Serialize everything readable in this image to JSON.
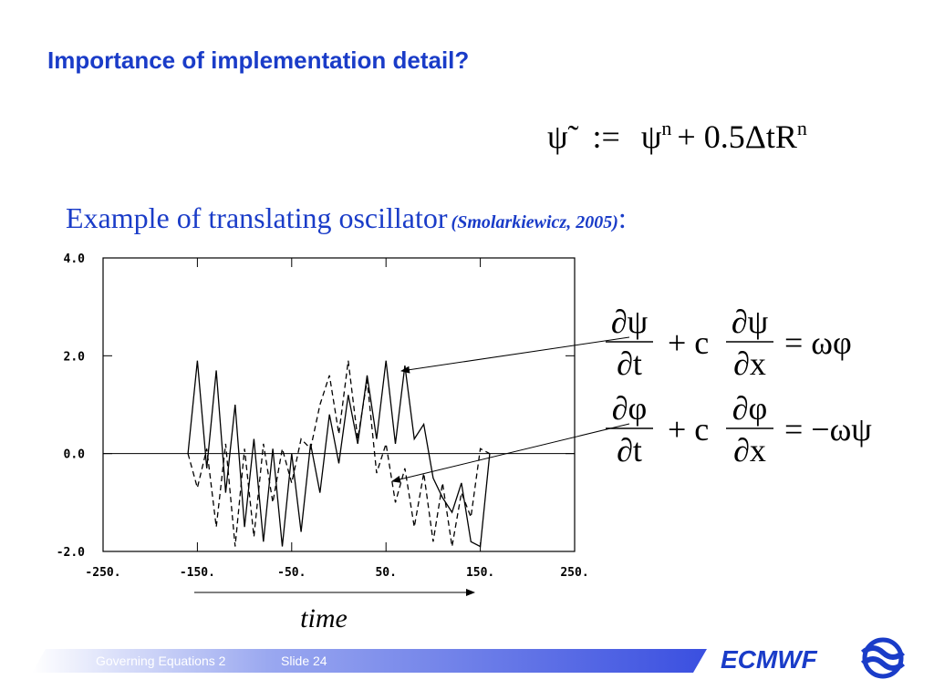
{
  "header": {
    "title": "Importance of implementation detail?",
    "formula": [
      "ψ̃",
      ":=",
      "ψ",
      "n",
      "+ 0.5ΔtR",
      "n"
    ]
  },
  "subtitle": {
    "text": "Example of translating oscillator",
    "citation": "(Smolarkiewicz, 2005)",
    "colon": ":"
  },
  "equations": [
    {
      "num1": "∂ψ",
      "den1": "∂t",
      "mid": "+ c",
      "num2": "∂ψ",
      "den2": "∂x",
      "rhs": "= ωφ"
    },
    {
      "num1": "∂φ",
      "den1": "∂t",
      "mid": "+ c",
      "num2": "∂φ",
      "den2": "∂x",
      "rhs": "= −ωψ"
    }
  ],
  "chart_data": {
    "type": "line",
    "x": [
      -160,
      -150,
      -140,
      -130,
      -120,
      -110,
      -100,
      -90,
      -80,
      -70,
      -60,
      -50,
      -40,
      -30,
      -20,
      -10,
      0,
      10,
      20,
      30,
      40,
      50,
      60,
      70,
      80,
      90,
      100,
      110,
      120,
      130,
      140,
      150,
      160
    ],
    "series": [
      {
        "color": "#000000",
        "dash": "solid",
        "values": [
          0,
          1.9,
          -0.3,
          1.7,
          -0.8,
          1.0,
          -1.5,
          0.3,
          -1.8,
          0.1,
          -1.9,
          0,
          -1.6,
          0.2,
          -0.8,
          0.8,
          -0.2,
          1.2,
          0.2,
          1.6,
          0.3,
          1.9,
          0.2,
          1.8,
          0.3,
          0.6,
          -0.5,
          -0.9,
          -1.2,
          -0.6,
          -1.8,
          -1.9,
          0
        ]
      },
      {
        "color": "#000000",
        "dash": "dashed",
        "values": [
          0,
          -0.7,
          0.1,
          -1.5,
          0.2,
          -1.9,
          0.1,
          -1.7,
          0.2,
          -1.0,
          0.1,
          -0.6,
          0.3,
          0.1,
          1.0,
          1.6,
          0.4,
          1.9,
          0.3,
          1.5,
          -0.4,
          0.2,
          -1.0,
          -0.3,
          -1.5,
          -0.4,
          -1.8,
          -0.6,
          -1.9,
          -0.8,
          -1.3,
          0.1,
          0
        ]
      }
    ],
    "xlim": [
      -250,
      250
    ],
    "xticks": [
      {
        "value": -250,
        "label": "-250."
      },
      {
        "value": -150,
        "label": "-150."
      },
      {
        "value": -50,
        "label": "-50."
      },
      {
        "value": 50,
        "label": "50."
      },
      {
        "value": 150,
        "label": "150."
      },
      {
        "value": 250,
        "label": "250."
      }
    ],
    "ylim": [
      -2,
      4
    ],
    "yticks": [
      {
        "value": -2,
        "label": "-2.0"
      },
      {
        "value": 0,
        "label": "0.0"
      },
      {
        "value": 2,
        "label": "2.0"
      },
      {
        "value": 4,
        "label": "4.0"
      }
    ],
    "xlabel": "time"
  },
  "footer": {
    "course": "Governing Equations 2",
    "slide": "Slide 24",
    "brand": "ECMWF"
  }
}
